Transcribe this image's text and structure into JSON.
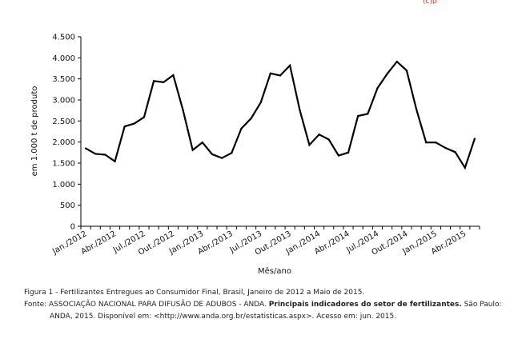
{
  "header_mark": "(c)p",
  "chart_data": {
    "type": "line",
    "xlabel": "Mês/ano",
    "ylabel": "em 1.000 t de produto",
    "ylim": [
      0,
      4500
    ],
    "yticks": [
      0,
      500,
      1000,
      1500,
      2000,
      2500,
      3000,
      3500,
      4000,
      4500
    ],
    "ytick_labels": [
      "0",
      "500",
      "1.000",
      "1.500",
      "2.000",
      "2.500",
      "3.000",
      "3.500",
      "4.000",
      "4.500"
    ],
    "xtick_labels": [
      "Jan./2012",
      "Abr./2012",
      "Jul./2012",
      "Out./2012",
      "Jan./2013",
      "Abr./2013",
      "Jul./2013",
      "Out./2013",
      "Jan./2014",
      "Abr./2014",
      "Jul./2014",
      "Out./2014",
      "Jan./2015",
      "Abr./2015"
    ],
    "grid": false,
    "legend": "none",
    "line_color": "#000000",
    "series": [
      {
        "x": [
          "Jan./2012",
          "Fev./2012",
          "Mar./2012",
          "Abr./2012",
          "Mai./2012",
          "Jun./2012",
          "Jul./2012",
          "Ago./2012",
          "Set./2012",
          "Out./2012",
          "Nov./2012",
          "Dez./2012",
          "Jan./2013",
          "Fev./2013",
          "Mar./2013",
          "Abr./2013",
          "Mai./2013",
          "Jun./2013",
          "Jul./2013",
          "Ago./2013",
          "Set./2013",
          "Out./2013",
          "Nov./2013",
          "Dez./2013",
          "Jan./2014",
          "Fev./2014",
          "Mar./2014",
          "Abr./2014",
          "Mai./2014",
          "Jun./2014",
          "Jul./2014",
          "Ago./2014",
          "Set./2014",
          "Out./2014",
          "Nov./2014",
          "Dez./2014",
          "Jan./2015",
          "Fev./2015",
          "Mar./2015",
          "Abr./2015",
          "Mai./2015"
        ],
        "values": [
          1850,
          1720,
          1700,
          1540,
          2370,
          2440,
          2590,
          3450,
          3420,
          3590,
          2760,
          1810,
          1990,
          1710,
          1620,
          1740,
          2320,
          2560,
          2940,
          3630,
          3580,
          3820,
          2770,
          1930,
          2180,
          2060,
          1680,
          1750,
          2620,
          2670,
          3280,
          3620,
          3910,
          3700,
          2780,
          1990,
          1990,
          1860,
          1760,
          1390,
          2080
        ]
      }
    ]
  },
  "caption": {
    "figure": "Figura 1 - Fertilizantes Entregues ao Consumidor Final, Brasil, Janeiro de 2012 a Maio de 2015.",
    "source_prefix": "Fonte: ASSOCIAÇÃO NACIONAL PARA DIFUSÃO DE ADUBOS - ANDA. ",
    "source_bold": "Principais indicadores do setor de fertilizantes.",
    "source_suffix": " São Paulo: ANDA, 2015. Disponível em: <http://www.anda.org.br/estatisticas.aspx>. Acesso em: jun. 2015."
  }
}
